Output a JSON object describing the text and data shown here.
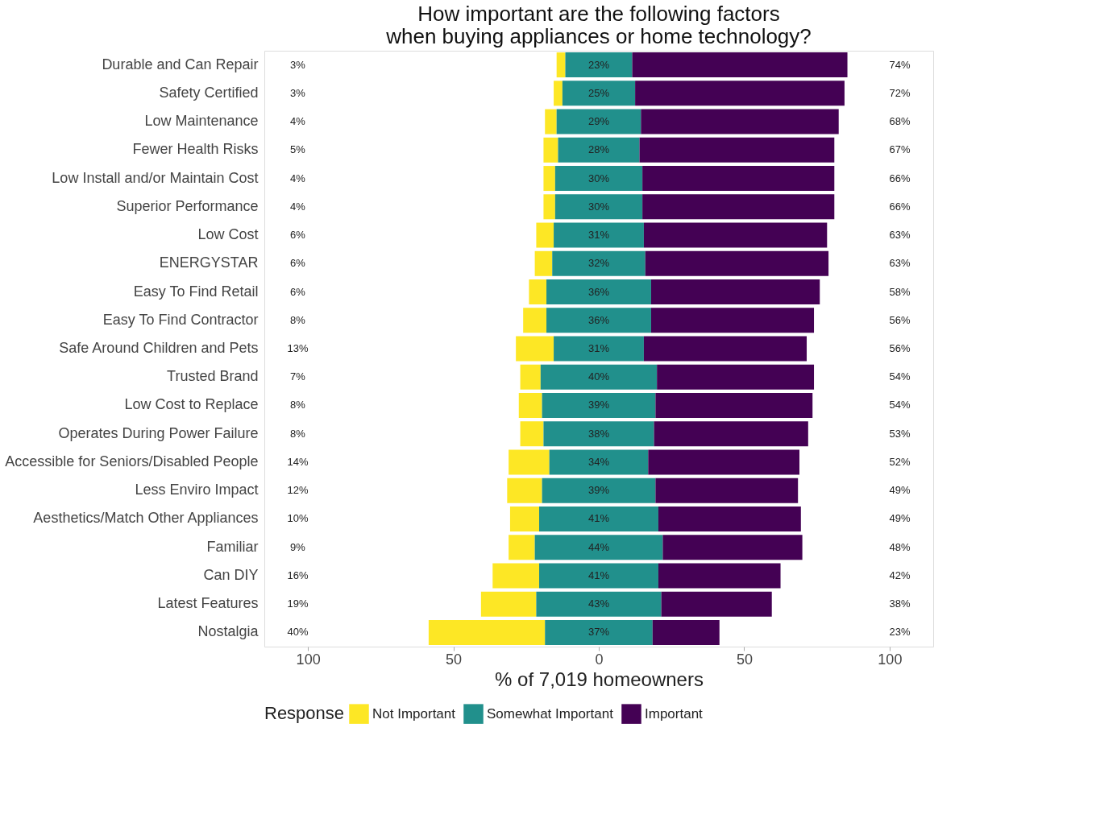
{
  "chart_data": {
    "type": "bar",
    "orientation": "horizontal",
    "title": "How important are the following factors\nwhen buying appliances or home technology?",
    "xlabel": "% of 7,019 homeowners",
    "legend_title": "Response",
    "legend": "bottom",
    "grid": false,
    "categories": [
      "Durable and Can Repair",
      "Safety Certified",
      "Low Maintenance",
      "Fewer Health Risks",
      "Low Install and/or Maintain Cost",
      "Superior Performance",
      "Low Cost",
      "ENERGYSTAR",
      "Easy To Find Retail",
      "Easy To Find Contractor",
      "Safe Around Children and Pets",
      "Trusted Brand",
      "Low Cost to Replace",
      "Operates During Power Failure",
      "Accessible for Seniors/Disabled People",
      "Less Enviro Impact",
      "Aesthetics/Match Other Appliances",
      "Familiar",
      "Can DIY",
      "Latest Features",
      "Nostalgia"
    ],
    "series": [
      {
        "name": "Not Important",
        "color": "#fde725",
        "values": [
          3,
          3,
          4,
          5,
          4,
          4,
          6,
          6,
          6,
          8,
          13,
          7,
          8,
          8,
          14,
          12,
          10,
          9,
          16,
          19,
          40
        ],
        "base": [
          -14.5,
          -15.5,
          -18.5,
          -19,
          -19,
          -19,
          -21.5,
          -22,
          -24,
          -26,
          -28.5,
          -27,
          -27.5,
          -27,
          -31,
          -31.5,
          -30.5,
          -31,
          -36.5,
          -40.5,
          -58.5
        ],
        "value_labels": [
          "3%",
          "3%",
          "4%",
          "5%",
          "4%",
          "4%",
          "6%",
          "6%",
          "6%",
          "8%",
          "13%",
          "7%",
          "8%",
          "8%",
          "14%",
          "12%",
          "10%",
          "9%",
          "16%",
          "19%",
          "40%"
        ]
      },
      {
        "name": "Somewhat Important",
        "color": "#21908c",
        "values": [
          23,
          25,
          29,
          28,
          30,
          30,
          31,
          32,
          36,
          36,
          31,
          40,
          39,
          38,
          34,
          39,
          41,
          44,
          41,
          43,
          37
        ],
        "base": [
          -11.5,
          -12.5,
          -14.5,
          -14,
          -15,
          -15,
          -15.5,
          -16,
          -18,
          -18,
          -15.5,
          -20,
          -19.5,
          -19,
          -17,
          -19.5,
          -20.5,
          -22,
          -20.5,
          -21.5,
          -18.5
        ],
        "value_labels": [
          "23%",
          "25%",
          "29%",
          "28%",
          "30%",
          "30%",
          "31%",
          "32%",
          "36%",
          "36%",
          "31%",
          "40%",
          "39%",
          "38%",
          "34%",
          "39%",
          "41%",
          "44%",
          "41%",
          "43%",
          "37%"
        ]
      },
      {
        "name": "Important",
        "color": "#440154",
        "values": [
          74,
          72,
          68,
          67,
          66,
          66,
          63,
          63,
          58,
          56,
          56,
          54,
          54,
          53,
          52,
          49,
          49,
          48,
          42,
          38,
          23
        ],
        "base": [
          11.5,
          12.5,
          14.5,
          14,
          15,
          15,
          15.5,
          16,
          18,
          18,
          15.5,
          20,
          19.5,
          19,
          17,
          19.5,
          20.5,
          22,
          20.5,
          21.5,
          18.5
        ],
        "value_labels": [
          "74%",
          "72%",
          "68%",
          "67%",
          "66%",
          "66%",
          "63%",
          "63%",
          "58%",
          "56%",
          "56%",
          "54%",
          "54%",
          "53%",
          "52%",
          "49%",
          "49%",
          "48%",
          "42%",
          "38%",
          "23%"
        ]
      }
    ],
    "xlim": [
      -115,
      115
    ],
    "xticks": [
      {
        "value": -100,
        "label": "100"
      },
      {
        "value": -50,
        "label": "50"
      },
      0,
      50,
      100
    ]
  }
}
